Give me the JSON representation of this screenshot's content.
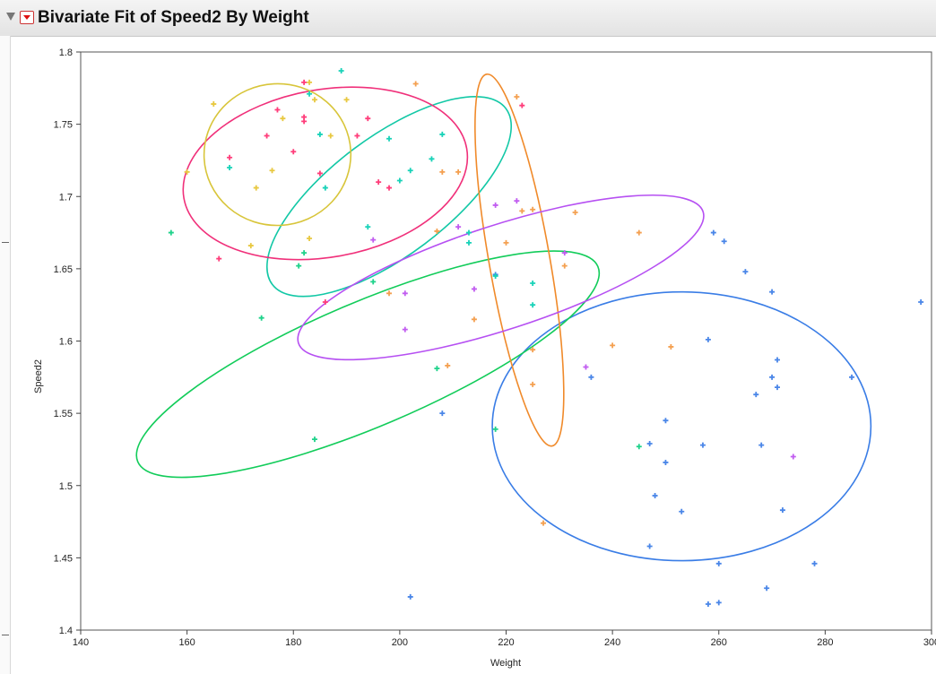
{
  "header": {
    "title": "Bivariate Fit of Speed2 By Weight"
  },
  "chart_data": {
    "type": "scatter",
    "title": "Bivariate Fit of Speed2 By Weight",
    "xlabel": "Weight",
    "ylabel": "Speed2",
    "xlim": [
      140,
      300
    ],
    "ylim": [
      1.4,
      1.8
    ],
    "xticks": [
      "140",
      "160",
      "180",
      "200",
      "220",
      "240",
      "260",
      "280",
      "300"
    ],
    "yticks": [
      "1.4",
      "1.45",
      "1.5",
      "1.55",
      "1.6",
      "1.65",
      "1.7",
      "1.75",
      "1.8"
    ],
    "grid": false,
    "legend": "none",
    "series": [
      {
        "color": "#4a86e8",
        "points": [
          [
            298,
            1.627
          ],
          [
            285,
            1.575
          ],
          [
            270,
            1.634
          ],
          [
            271,
            1.587
          ],
          [
            270,
            1.575
          ],
          [
            271,
            1.568
          ],
          [
            267,
            1.563
          ],
          [
            265,
            1.648
          ],
          [
            259,
            1.675
          ],
          [
            261,
            1.669
          ],
          [
            258,
            1.601
          ],
          [
            257,
            1.528
          ],
          [
            268,
            1.528
          ],
          [
            250,
            1.545
          ],
          [
            247,
            1.529
          ],
          [
            250,
            1.516
          ],
          [
            248,
            1.493
          ],
          [
            253,
            1.482
          ],
          [
            272,
            1.483
          ],
          [
            247,
            1.458
          ],
          [
            260,
            1.446
          ],
          [
            278,
            1.446
          ],
          [
            269,
            1.429
          ],
          [
            258,
            1.418
          ],
          [
            260,
            1.419
          ],
          [
            236,
            1.575
          ],
          [
            208,
            1.55
          ],
          [
            202,
            1.423
          ],
          [
            218,
            1.646
          ]
        ]
      },
      {
        "color": "#1ed28a",
        "points": [
          [
            157,
            1.675
          ],
          [
            174,
            1.616
          ],
          [
            184,
            1.532
          ],
          [
            195,
            1.641
          ],
          [
            207,
            1.581
          ],
          [
            218,
            1.539
          ],
          [
            245,
            1.527
          ],
          [
            182,
            1.661
          ],
          [
            181,
            1.652
          ]
        ]
      },
      {
        "color": "#18d2b8",
        "points": [
          [
            168,
            1.72
          ],
          [
            183,
            1.771
          ],
          [
            189,
            1.787
          ],
          [
            185,
            1.743
          ],
          [
            186,
            1.706
          ],
          [
            198,
            1.74
          ],
          [
            200,
            1.711
          ],
          [
            202,
            1.718
          ],
          [
            206,
            1.726
          ],
          [
            208,
            1.743
          ],
          [
            194,
            1.679
          ],
          [
            213,
            1.675
          ],
          [
            213,
            1.668
          ],
          [
            218,
            1.645
          ],
          [
            225,
            1.64
          ],
          [
            225,
            1.625
          ]
        ]
      },
      {
        "color": "#ff3d7a",
        "points": [
          [
            166,
            1.657
          ],
          [
            168,
            1.727
          ],
          [
            175,
            1.742
          ],
          [
            177,
            1.76
          ],
          [
            180,
            1.731
          ],
          [
            182,
            1.752
          ],
          [
            182,
            1.755
          ],
          [
            182,
            1.779
          ],
          [
            185,
            1.716
          ],
          [
            186,
            1.627
          ],
          [
            192,
            1.742
          ],
          [
            194,
            1.754
          ],
          [
            196,
            1.71
          ],
          [
            198,
            1.706
          ],
          [
            223,
            1.763
          ]
        ]
      },
      {
        "color": "#e8c840",
        "points": [
          [
            165,
            1.764
          ],
          [
            160,
            1.717
          ],
          [
            173,
            1.706
          ],
          [
            176,
            1.718
          ],
          [
            178,
            1.754
          ],
          [
            183,
            1.779
          ],
          [
            184,
            1.767
          ],
          [
            172,
            1.666
          ],
          [
            183,
            1.671
          ],
          [
            190,
            1.767
          ],
          [
            187,
            1.742
          ]
        ]
      },
      {
        "color": "#f4a050",
        "points": [
          [
            203,
            1.778
          ],
          [
            222,
            1.769
          ],
          [
            207,
            1.676
          ],
          [
            208,
            1.717
          ],
          [
            211,
            1.717
          ],
          [
            220,
            1.668
          ],
          [
            223,
            1.69
          ],
          [
            225,
            1.691
          ],
          [
            233,
            1.689
          ],
          [
            231,
            1.652
          ],
          [
            214,
            1.615
          ],
          [
            245,
            1.675
          ],
          [
            240,
            1.597
          ],
          [
            251,
            1.596
          ],
          [
            209,
            1.583
          ],
          [
            227,
            1.474
          ],
          [
            225,
            1.57
          ],
          [
            225,
            1.594
          ],
          [
            198,
            1.633
          ]
        ]
      },
      {
        "color": "#c15cf0",
        "points": [
          [
            222,
            1.697
          ],
          [
            218,
            1.694
          ],
          [
            211,
            1.679
          ],
          [
            214,
            1.636
          ],
          [
            231,
            1.661
          ],
          [
            201,
            1.633
          ],
          [
            201,
            1.608
          ],
          [
            195,
            1.67
          ],
          [
            274,
            1.52
          ],
          [
            235,
            1.582
          ]
        ]
      }
    ],
    "ellipses": [
      {
        "color": "#3a7de6",
        "cx": 253,
        "cy": 1.541,
        "rx": 35.6,
        "ry": 0.093,
        "rotation_deg": 0
      },
      {
        "color": "#12cc5a",
        "cx": 194,
        "cy": 1.584,
        "rx": 47,
        "ry": 0.043,
        "rotation_deg": 23
      },
      {
        "color": "#12c8a6",
        "cx": 198,
        "cy": 1.7,
        "rx": 27.5,
        "ry": 0.041,
        "rotation_deg": 37
      },
      {
        "color": "#f0307a",
        "cx": 186,
        "cy": 1.716,
        "rx": 27,
        "ry": 0.058,
        "rotation_deg": 10
      },
      {
        "color": "#d8c53a",
        "cx": 177,
        "cy": 1.729,
        "rx": 13.8,
        "ry": 0.049,
        "rotation_deg": 3
      },
      {
        "color": "#f08a2a",
        "cx": 222.5,
        "cy": 1.656,
        "rx": 35.5,
        "ry": 0.021,
        "rotation_deg": -80
      },
      {
        "color": "#b650f2",
        "cx": 219,
        "cy": 1.644,
        "rx": 40,
        "ry": 0.036,
        "rotation_deg": 18
      }
    ]
  }
}
